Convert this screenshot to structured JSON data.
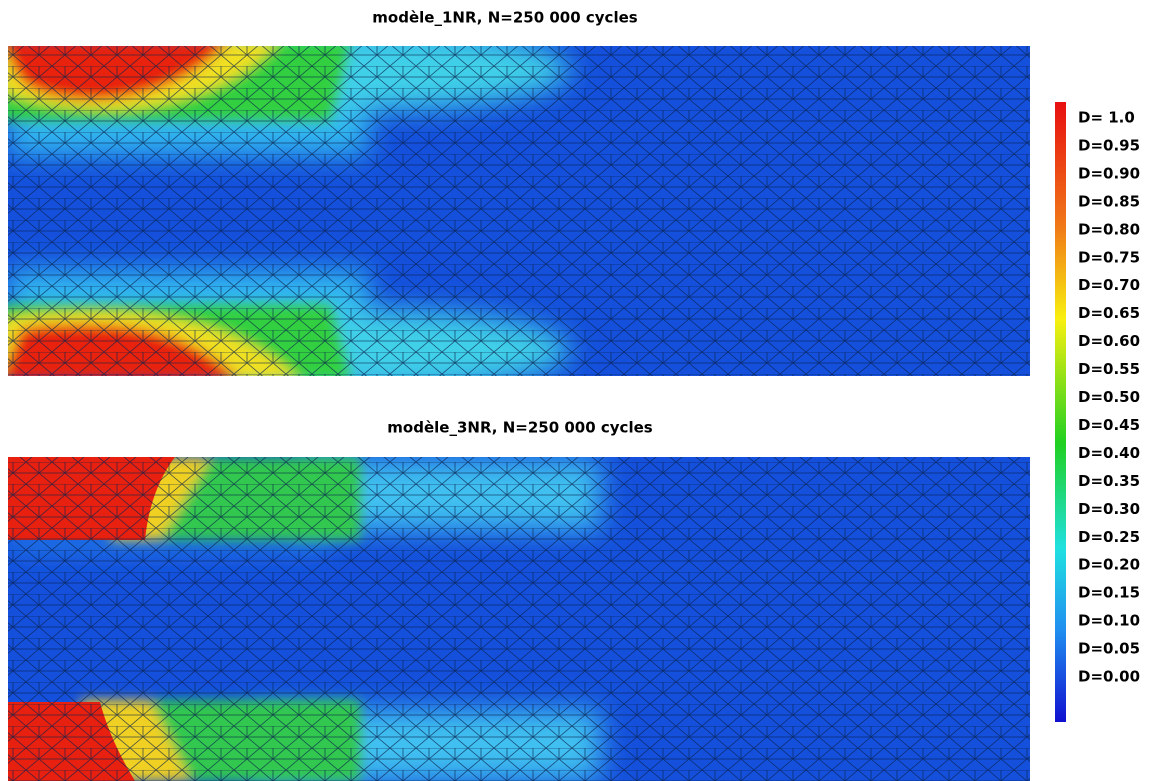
{
  "panels": [
    {
      "title": "modèle_1NR, N=250 000 cycles"
    },
    {
      "title": "modèle_3NR, N=250 000 cycles"
    }
  ],
  "legend": {
    "labels": [
      "D= 1.0",
      "D=0.95",
      "D=0.90",
      "D=0.85",
      "D=0.80",
      "D=0.75",
      "D=0.70",
      "D=0.65",
      "D=0.60",
      "D=0.55",
      "D=0.50",
      "D=0.45",
      "D=0.40",
      "D=0.35",
      "D=0.30",
      "D=0.25",
      "D=0.20",
      "D=0.15",
      "D=0.10",
      "D=0.05",
      "D=0.00"
    ]
  }
}
